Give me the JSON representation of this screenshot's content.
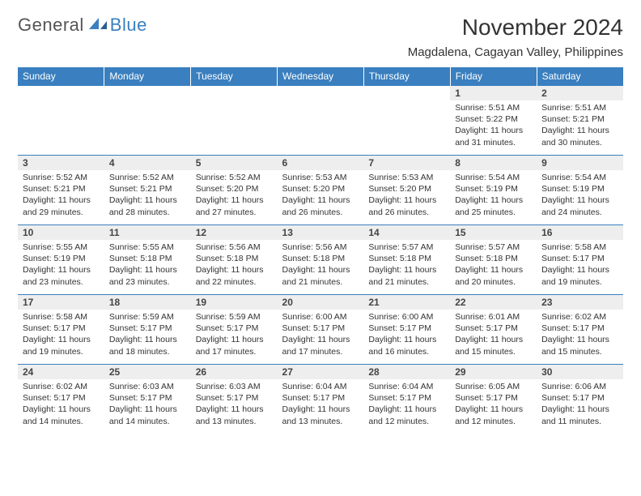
{
  "logo": {
    "general": "General",
    "blue": "Blue"
  },
  "title": "November 2024",
  "subtitle": "Magdalena, Cagayan Valley, Philippines",
  "colors": {
    "header_bg": "#3a7fbf",
    "header_text": "#ffffff",
    "daynum_bg": "#eeeeee",
    "border": "#3a7fbf",
    "body_text": "#333333",
    "logo_gray": "#555555",
    "logo_blue": "#3a7fbf"
  },
  "days_of_week": [
    "Sunday",
    "Monday",
    "Tuesday",
    "Wednesday",
    "Thursday",
    "Friday",
    "Saturday"
  ],
  "weeks": [
    [
      {
        "blank": true
      },
      {
        "blank": true
      },
      {
        "blank": true
      },
      {
        "blank": true
      },
      {
        "blank": true
      },
      {
        "n": "1",
        "sunrise": "5:51 AM",
        "sunset": "5:22 PM",
        "daylight": "11 hours and 31 minutes."
      },
      {
        "n": "2",
        "sunrise": "5:51 AM",
        "sunset": "5:21 PM",
        "daylight": "11 hours and 30 minutes."
      }
    ],
    [
      {
        "n": "3",
        "sunrise": "5:52 AM",
        "sunset": "5:21 PM",
        "daylight": "11 hours and 29 minutes."
      },
      {
        "n": "4",
        "sunrise": "5:52 AM",
        "sunset": "5:21 PM",
        "daylight": "11 hours and 28 minutes."
      },
      {
        "n": "5",
        "sunrise": "5:52 AM",
        "sunset": "5:20 PM",
        "daylight": "11 hours and 27 minutes."
      },
      {
        "n": "6",
        "sunrise": "5:53 AM",
        "sunset": "5:20 PM",
        "daylight": "11 hours and 26 minutes."
      },
      {
        "n": "7",
        "sunrise": "5:53 AM",
        "sunset": "5:20 PM",
        "daylight": "11 hours and 26 minutes."
      },
      {
        "n": "8",
        "sunrise": "5:54 AM",
        "sunset": "5:19 PM",
        "daylight": "11 hours and 25 minutes."
      },
      {
        "n": "9",
        "sunrise": "5:54 AM",
        "sunset": "5:19 PM",
        "daylight": "11 hours and 24 minutes."
      }
    ],
    [
      {
        "n": "10",
        "sunrise": "5:55 AM",
        "sunset": "5:19 PM",
        "daylight": "11 hours and 23 minutes."
      },
      {
        "n": "11",
        "sunrise": "5:55 AM",
        "sunset": "5:18 PM",
        "daylight": "11 hours and 23 minutes."
      },
      {
        "n": "12",
        "sunrise": "5:56 AM",
        "sunset": "5:18 PM",
        "daylight": "11 hours and 22 minutes."
      },
      {
        "n": "13",
        "sunrise": "5:56 AM",
        "sunset": "5:18 PM",
        "daylight": "11 hours and 21 minutes."
      },
      {
        "n": "14",
        "sunrise": "5:57 AM",
        "sunset": "5:18 PM",
        "daylight": "11 hours and 21 minutes."
      },
      {
        "n": "15",
        "sunrise": "5:57 AM",
        "sunset": "5:18 PM",
        "daylight": "11 hours and 20 minutes."
      },
      {
        "n": "16",
        "sunrise": "5:58 AM",
        "sunset": "5:17 PM",
        "daylight": "11 hours and 19 minutes."
      }
    ],
    [
      {
        "n": "17",
        "sunrise": "5:58 AM",
        "sunset": "5:17 PM",
        "daylight": "11 hours and 19 minutes."
      },
      {
        "n": "18",
        "sunrise": "5:59 AM",
        "sunset": "5:17 PM",
        "daylight": "11 hours and 18 minutes."
      },
      {
        "n": "19",
        "sunrise": "5:59 AM",
        "sunset": "5:17 PM",
        "daylight": "11 hours and 17 minutes."
      },
      {
        "n": "20",
        "sunrise": "6:00 AM",
        "sunset": "5:17 PM",
        "daylight": "11 hours and 17 minutes."
      },
      {
        "n": "21",
        "sunrise": "6:00 AM",
        "sunset": "5:17 PM",
        "daylight": "11 hours and 16 minutes."
      },
      {
        "n": "22",
        "sunrise": "6:01 AM",
        "sunset": "5:17 PM",
        "daylight": "11 hours and 15 minutes."
      },
      {
        "n": "23",
        "sunrise": "6:02 AM",
        "sunset": "5:17 PM",
        "daylight": "11 hours and 15 minutes."
      }
    ],
    [
      {
        "n": "24",
        "sunrise": "6:02 AM",
        "sunset": "5:17 PM",
        "daylight": "11 hours and 14 minutes."
      },
      {
        "n": "25",
        "sunrise": "6:03 AM",
        "sunset": "5:17 PM",
        "daylight": "11 hours and 14 minutes."
      },
      {
        "n": "26",
        "sunrise": "6:03 AM",
        "sunset": "5:17 PM",
        "daylight": "11 hours and 13 minutes."
      },
      {
        "n": "27",
        "sunrise": "6:04 AM",
        "sunset": "5:17 PM",
        "daylight": "11 hours and 13 minutes."
      },
      {
        "n": "28",
        "sunrise": "6:04 AM",
        "sunset": "5:17 PM",
        "daylight": "11 hours and 12 minutes."
      },
      {
        "n": "29",
        "sunrise": "6:05 AM",
        "sunset": "5:17 PM",
        "daylight": "11 hours and 12 minutes."
      },
      {
        "n": "30",
        "sunrise": "6:06 AM",
        "sunset": "5:17 PM",
        "daylight": "11 hours and 11 minutes."
      }
    ]
  ],
  "labels": {
    "sunrise": "Sunrise:",
    "sunset": "Sunset:",
    "daylight": "Daylight:"
  }
}
